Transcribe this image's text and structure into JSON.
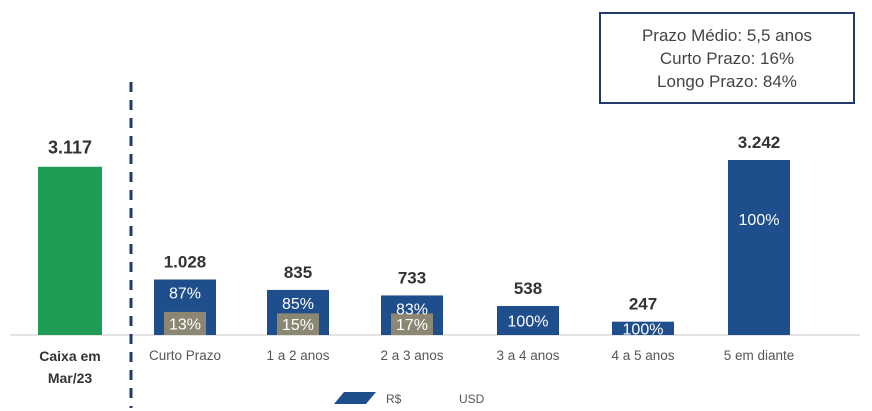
{
  "info_box": {
    "line1": "Prazo Médio: 5,5 anos",
    "line2": "Curto Prazo: 16%",
    "line3": "Longo Prazo: 84%"
  },
  "colors": {
    "cash": "#1f9d57",
    "brl": "#1f4e8c",
    "usd": "#8c8773",
    "divider": "#1f3a6b",
    "text": "#333333"
  },
  "chart_data": {
    "type": "bar",
    "stacked": true,
    "legend_position": "bottom",
    "cash": {
      "category": "Caixa em\nMar/23",
      "value": 3117,
      "label": "3.117"
    },
    "categories": [
      "Curto Prazo",
      "1 a 2 anos",
      "2 a 3 anos",
      "3 a 4 anos",
      "4 a 5 anos",
      "5 em diante"
    ],
    "totals": [
      1028,
      835,
      733,
      538,
      247,
      3242
    ],
    "total_labels": [
      "1.028",
      "835",
      "733",
      "538",
      "247",
      "3.242"
    ],
    "series": [
      {
        "name": "R$",
        "share_labels": [
          "87%",
          "85%",
          "83%",
          "100%",
          "100%",
          "100%"
        ],
        "shares": [
          0.87,
          0.85,
          0.83,
          1,
          1,
          1
        ]
      },
      {
        "name": "USD",
        "share_labels": [
          "13%",
          "15%",
          "17%",
          "",
          "",
          ""
        ],
        "shares": [
          0.13,
          0.15,
          0.17,
          0,
          0,
          0
        ]
      }
    ]
  }
}
